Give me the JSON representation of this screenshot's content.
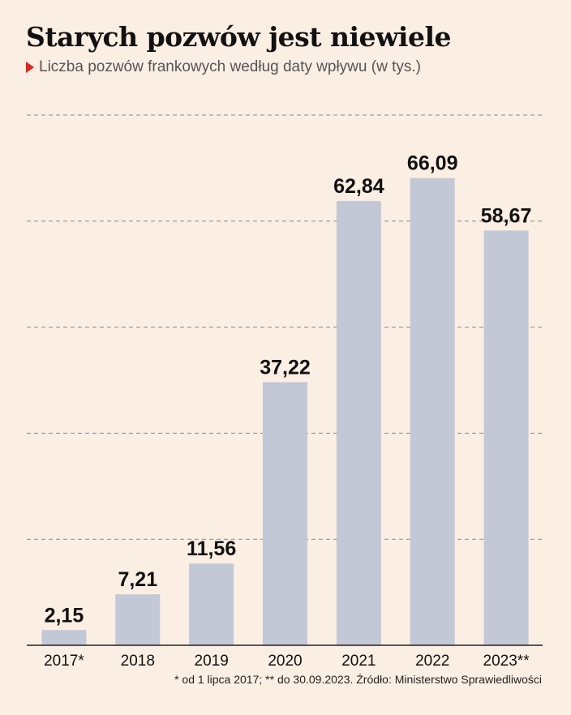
{
  "title": "Starych pozwów jest niewiele",
  "subtitle": "Liczba pozwów frankowych według daty wpływu (w tys.)",
  "footnote": "* od 1 lipca 2017; ** do 30.09.2023. Źródło: Ministerstwo Sprawiedliwości",
  "colors": {
    "bar": "#c3c8d7",
    "accent": "#e2231a",
    "background": "#fbeee3",
    "grid": "#8a8a8a"
  },
  "chart_data": {
    "type": "bar",
    "categories": [
      "2017*",
      "2018",
      "2019",
      "2020",
      "2021",
      "2022",
      "2023**"
    ],
    "values": [
      2.15,
      7.21,
      11.56,
      37.22,
      62.84,
      66.09,
      58.67
    ],
    "value_labels": [
      "2,15",
      "7,21",
      "11,56",
      "37,22",
      "62,84",
      "66,09",
      "58,67"
    ],
    "ylim": [
      0,
      75
    ],
    "gridlines": [
      15,
      30,
      45,
      60,
      75
    ],
    "grid": true
  }
}
